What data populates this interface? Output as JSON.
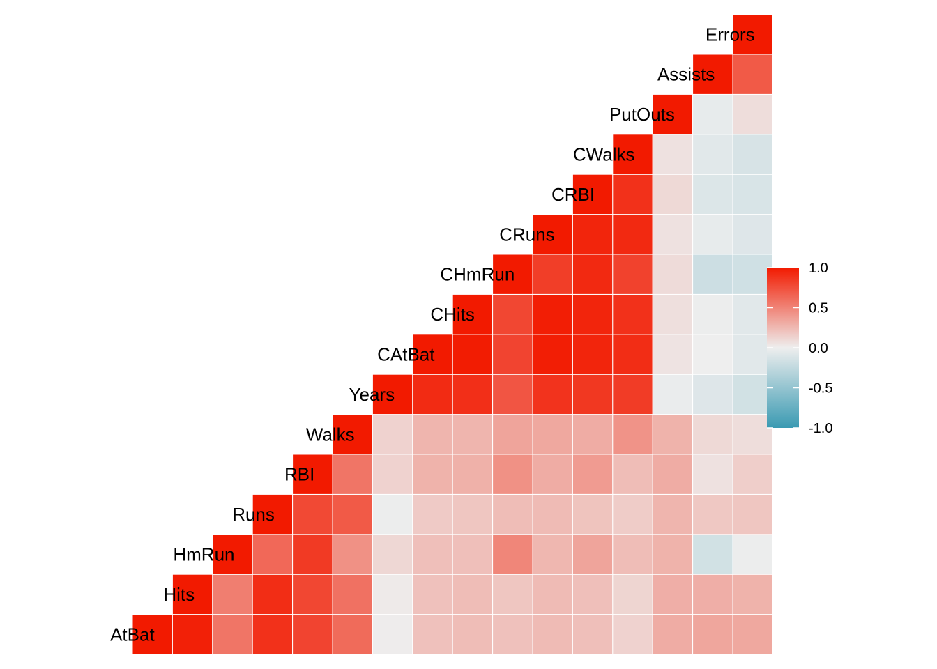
{
  "chart_data": {
    "type": "heatmap",
    "title": "",
    "variables": [
      "AtBat",
      "Hits",
      "HmRun",
      "Runs",
      "RBI",
      "Walks",
      "Years",
      "CAtBat",
      "CHits",
      "CHmRun",
      "CRuns",
      "CRBI",
      "CWalks",
      "PutOuts",
      "Assists",
      "Errors"
    ],
    "matrix": [
      [
        1.0,
        0.97,
        0.57,
        0.89,
        0.8,
        0.62,
        0.01,
        0.21,
        0.23,
        0.21,
        0.24,
        0.22,
        0.13,
        0.31,
        0.34,
        0.33
      ],
      [
        0.97,
        1.0,
        0.53,
        0.91,
        0.79,
        0.59,
        0.02,
        0.21,
        0.23,
        0.19,
        0.24,
        0.22,
        0.12,
        0.3,
        0.3,
        0.28
      ],
      [
        0.57,
        0.53,
        1.0,
        0.63,
        0.85,
        0.44,
        0.11,
        0.22,
        0.22,
        0.49,
        0.26,
        0.35,
        0.23,
        0.28,
        -0.16,
        -0.01
      ],
      [
        0.89,
        0.91,
        0.63,
        1.0,
        0.78,
        0.7,
        -0.01,
        0.17,
        0.19,
        0.23,
        0.24,
        0.2,
        0.16,
        0.27,
        0.18,
        0.19
      ],
      [
        0.8,
        0.79,
        0.85,
        0.78,
        1.0,
        0.57,
        0.13,
        0.28,
        0.29,
        0.44,
        0.31,
        0.39,
        0.23,
        0.31,
        0.06,
        0.15
      ],
      [
        0.62,
        0.59,
        0.44,
        0.7,
        0.57,
        1.0,
        0.13,
        0.27,
        0.27,
        0.35,
        0.33,
        0.31,
        0.43,
        0.28,
        0.1,
        0.08
      ],
      [
        0.01,
        0.02,
        0.11,
        -0.01,
        0.13,
        0.13,
        1.0,
        0.92,
        0.9,
        0.72,
        0.88,
        0.86,
        0.84,
        -0.02,
        -0.09,
        -0.16
      ],
      [
        0.21,
        0.21,
        0.22,
        0.17,
        0.28,
        0.27,
        0.92,
        1.0,
        0.99,
        0.8,
        0.98,
        0.95,
        0.91,
        0.05,
        0.0,
        -0.07
      ],
      [
        0.23,
        0.23,
        0.22,
        0.19,
        0.29,
        0.27,
        0.9,
        0.99,
        1.0,
        0.79,
        0.98,
        0.95,
        0.89,
        0.07,
        -0.01,
        -0.07
      ],
      [
        0.21,
        0.19,
        0.49,
        0.23,
        0.44,
        0.35,
        0.72,
        0.8,
        0.79,
        1.0,
        0.83,
        0.93,
        0.81,
        0.09,
        -0.19,
        -0.17
      ],
      [
        0.24,
        0.24,
        0.26,
        0.24,
        0.31,
        0.33,
        0.88,
        0.98,
        0.98,
        0.83,
        1.0,
        0.95,
        0.93,
        0.06,
        -0.04,
        -0.09
      ],
      [
        0.22,
        0.22,
        0.35,
        0.2,
        0.39,
        0.31,
        0.86,
        0.95,
        0.95,
        0.93,
        0.95,
        1.0,
        0.89,
        0.1,
        -0.1,
        -0.12
      ],
      [
        0.13,
        0.12,
        0.23,
        0.16,
        0.23,
        0.43,
        0.84,
        0.91,
        0.89,
        0.81,
        0.93,
        0.89,
        1.0,
        0.06,
        -0.07,
        -0.13
      ],
      [
        0.31,
        0.3,
        0.28,
        0.27,
        0.31,
        0.28,
        -0.02,
        0.05,
        0.07,
        0.09,
        0.06,
        0.1,
        0.06,
        1.0,
        -0.04,
        0.08
      ],
      [
        0.34,
        0.3,
        -0.16,
        0.18,
        0.06,
        0.1,
        -0.09,
        0.0,
        -0.01,
        -0.19,
        -0.04,
        -0.1,
        -0.07,
        -0.04,
        1.0,
        0.7
      ],
      [
        0.33,
        0.28,
        -0.01,
        0.19,
        0.15,
        0.08,
        -0.16,
        -0.07,
        -0.07,
        -0.17,
        -0.09,
        -0.12,
        -0.13,
        0.08,
        0.7,
        1.0
      ]
    ],
    "color_scale": {
      "low": "#3A9AB2",
      "mid": "#EEEEEE",
      "high": "#F21A00",
      "limits": [
        -1,
        1
      ]
    },
    "legend": {
      "position": "right",
      "ticks": [
        "1.0",
        "0.5",
        "0.0",
        "-0.5",
        "-1.0"
      ]
    }
  }
}
